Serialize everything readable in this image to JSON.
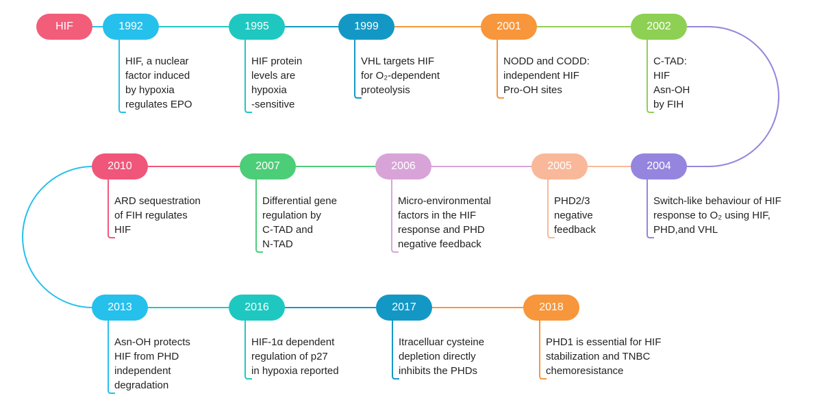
{
  "timeline": {
    "start": {
      "label": "HIF",
      "color": "#f25d7a"
    },
    "events": [
      {
        "year": "1992",
        "color": "#26c0ec",
        "lines": [
          "HIF, a nuclear",
          "factor induced",
          "by hypoxia",
          "regulates EPO"
        ]
      },
      {
        "year": "1995",
        "color": "#1ec8c0",
        "lines": [
          "HIF protein",
          "levels are",
          "hypoxia",
          "-sensitive"
        ]
      },
      {
        "year": "1999",
        "color": "#1398c6",
        "lines": [
          "VHL targets HIF",
          "for O₂-dependent",
          "proteolysis"
        ]
      },
      {
        "year": "2001",
        "color": "#f7963b",
        "lines": [
          "NODD and CODD:",
          "independent HIF",
          "Pro-OH sites"
        ]
      },
      {
        "year": "2002",
        "color": "#8ed053",
        "lines": [
          "C-TAD:",
          "HIF",
          "Asn-OH",
          "by FIH"
        ]
      },
      {
        "year": "2004",
        "color": "#9585de",
        "lines": [
          "Switch-like behaviour of HIF",
          "response to O₂ using HIF,",
          "PHD,and VHL"
        ]
      },
      {
        "year": "2005",
        "color": "#f9b89a",
        "lines": [
          "PHD2/3",
          "negative",
          "feedback"
        ]
      },
      {
        "year": "2006",
        "color": "#d8a4d8",
        "lines": [
          "Micro-environmental",
          "factors in the HIF",
          "response and PHD",
          "negative feedback"
        ]
      },
      {
        "year": "2007",
        "color": "#4ccd78",
        "lines": [
          "Differential gene",
          "regulation by",
          "C-TAD and",
          "N-TAD"
        ]
      },
      {
        "year": "2010",
        "color": "#f0567a",
        "lines": [
          "ARD sequestration",
          "of FIH regulates",
          "HIF"
        ]
      },
      {
        "year": "2013",
        "color": "#26c0ec",
        "lines": [
          "Asn-OH protects",
          "HIF from PHD",
          "independent",
          "degradation"
        ]
      },
      {
        "year": "2016",
        "color": "#1ec8c0",
        "lines": [
          "HIF-1α dependent",
          "regulation of p27",
          "in hypoxia reported"
        ]
      },
      {
        "year": "2017",
        "color": "#1398c6",
        "lines": [
          "Itracelluar cysteine",
          "depletion directly",
          "inhibits the PHDs"
        ]
      },
      {
        "year": "2018",
        "color": "#f7963b",
        "lines": [
          "PHD1 is essential for HIF",
          "stabilization and TNBC",
          "chemoresistance"
        ]
      }
    ]
  }
}
